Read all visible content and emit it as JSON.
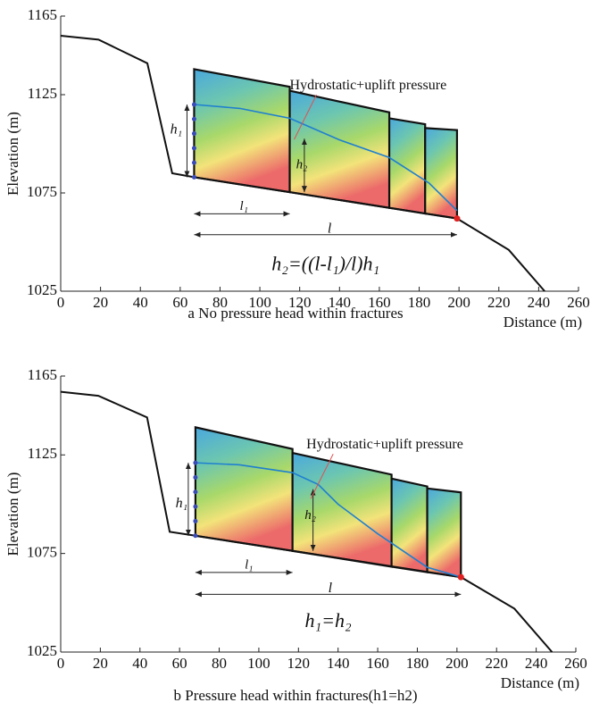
{
  "chart_data": [
    {
      "type": "line",
      "caption": "a  No pressure head within fractures",
      "xlabel": "Distance (m)",
      "ylabel": "Elevation (m)",
      "xlim": [
        0,
        260
      ],
      "xticks": [
        0,
        20,
        40,
        60,
        80,
        100,
        120,
        140,
        160,
        180,
        200,
        220,
        240,
        260
      ],
      "ylim": [
        1025,
        1165
      ],
      "yticks": [
        1025,
        1075,
        1125,
        1165
      ],
      "profile": {
        "x": [
          0,
          19,
          43.5,
          56,
          67,
          199,
          225,
          243
        ],
        "y": [
          1155,
          1153,
          1141,
          1085,
          1083,
          1062,
          1046,
          1025
        ]
      },
      "blocks": [
        {
          "x": [
            67,
            115,
            115,
            67
          ],
          "y": [
            1138,
            1129,
            1075.4,
            1083
          ]
        },
        {
          "x": [
            115,
            165,
            165,
            115
          ],
          "y": [
            1127,
            1116,
            1067.4,
            1075.4
          ]
        },
        {
          "x": [
            165,
            183,
            183,
            165
          ],
          "y": [
            1113,
            1110,
            1064.5,
            1067.4
          ]
        },
        {
          "x": [
            183,
            199,
            199,
            183
          ],
          "y": [
            1108,
            1107,
            1062,
            1064.5
          ]
        }
      ],
      "water_table": {
        "x": [
          67,
          90,
          115,
          140,
          165,
          185,
          199
        ],
        "y": [
          1120,
          1118,
          1113,
          1102,
          1093,
          1080,
          1066
        ]
      },
      "annotations": [
        "Hydrostatic+uplift pressure",
        "h₁",
        "h₂",
        "l₁",
        "l",
        "h₂=((l-l₁)/l)h₁"
      ]
    },
    {
      "type": "line",
      "caption": "b  Pressure head within fractures(h1=h2)",
      "xlabel": "Distance (m)",
      "ylabel": "Elevation (m)",
      "xlim": [
        0,
        260
      ],
      "xticks": [
        0,
        20,
        40,
        60,
        80,
        100,
        120,
        140,
        160,
        180,
        200,
        220,
        240,
        260
      ],
      "ylim": [
        1025,
        1165
      ],
      "yticks": [
        1025,
        1075,
        1125,
        1165
      ],
      "profile": {
        "x": [
          0,
          19,
          43.6,
          55,
          68,
          202,
          229,
          248
        ],
        "y": [
          1157,
          1155,
          1144,
          1086,
          1084,
          1063,
          1047,
          1025
        ]
      },
      "blocks": [
        {
          "x": [
            68,
            117,
            117,
            68
          ],
          "y": [
            1139,
            1128,
            1076.3,
            1084
          ]
        },
        {
          "x": [
            117,
            167,
            167,
            117
          ],
          "y": [
            1126,
            1115,
            1068.3,
            1076.3
          ]
        },
        {
          "x": [
            167,
            185,
            185,
            167
          ],
          "y": [
            1113,
            1109,
            1065.5,
            1068.3
          ]
        },
        {
          "x": [
            185,
            202,
            202,
            185
          ],
          "y": [
            1108,
            1106,
            1063,
            1065.5
          ]
        }
      ],
      "water_table": {
        "x": [
          68,
          90,
          117,
          130,
          140,
          160,
          185,
          202
        ],
        "y": [
          1121,
          1120,
          1116,
          1110,
          1100,
          1085,
          1068,
          1063
        ]
      },
      "annotations": [
        "Hydrostatic+uplift pressure",
        "h₁",
        "h₂",
        "l₁",
        "l",
        "h₁=h₂"
      ]
    }
  ]
}
